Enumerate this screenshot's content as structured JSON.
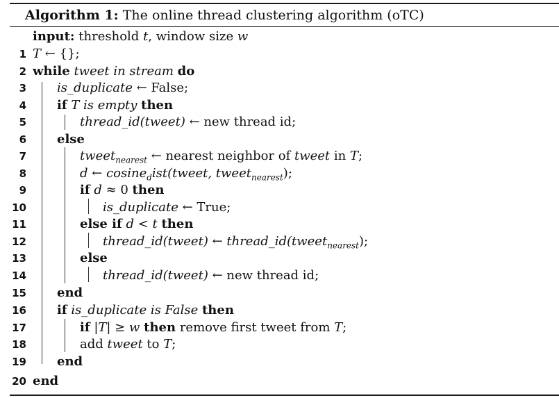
{
  "algorithm": {
    "caption_label": "Algorithm 1:",
    "caption_title": "The online thread clustering algorithm (oTC)",
    "input_keyword": "input:",
    "input_text_1": "threshold ",
    "input_var_t": "t",
    "input_text_2": ", window size ",
    "input_var_w": "w"
  },
  "lines": [
    {
      "num": "1"
    },
    {
      "num": "2"
    },
    {
      "num": "3"
    },
    {
      "num": "4"
    },
    {
      "num": "5"
    },
    {
      "num": "6"
    },
    {
      "num": "7"
    },
    {
      "num": "8"
    },
    {
      "num": "9"
    },
    {
      "num": "10"
    },
    {
      "num": "11"
    },
    {
      "num": "12"
    },
    {
      "num": "13"
    },
    {
      "num": "14"
    },
    {
      "num": "15"
    },
    {
      "num": "16"
    },
    {
      "num": "17"
    },
    {
      "num": "18"
    },
    {
      "num": "19"
    },
    {
      "num": "20"
    }
  ],
  "code": {
    "l1_a": "T",
    "l1_b": " ← {};",
    "kw_while": "while",
    "l2_cond": " tweet in stream ",
    "kw_do": "do",
    "l3_var": "is_duplicate",
    "l3_rest": " ← False;",
    "kw_if": "if",
    "l4_var": " T",
    "l4_cond": " is empty ",
    "kw_then": "then",
    "l5_lhs": "thread_id(tweet)",
    "l5_rest": " ← new thread id;",
    "kw_else": "else",
    "l7_var": "tweet",
    "l7_sub": "nearest",
    "l7_text": " ← nearest neighbor of ",
    "l7_tweet": "tweet",
    "l7_in": " in ",
    "l7_T": "T",
    "l7_end": ";",
    "l8_d": "d",
    "l8_arrow": " ← ",
    "l8_func": "cosine",
    "l8_sub": "d",
    "l8_func2": "ist(tweet, tweet",
    "l8_sub2": "nearest",
    "l8_end": ");",
    "l9_cond_a": " d",
    "l9_cond_b": " ≈ 0 ",
    "l10_var": "is_duplicate",
    "l10_rest": " ← True;",
    "kw_elseif": "else if",
    "l11_d": " d",
    "l11_lt": " < ",
    "l11_t": "t",
    "l11_sp": " ",
    "l12_lhs": "thread_id(tweet)",
    "l12_arrow": " ← ",
    "l12_rhs": "thread_id(tweet",
    "l12_sub": "nearest",
    "l12_end": ");",
    "l14_lhs": "thread_id(tweet)",
    "l14_rest": " ← new thread id;",
    "kw_end": "end",
    "l16_var": " is_duplicate",
    "l16_cond": " is False ",
    "l17_cond_a": " |T|",
    "l17_cond_b": " ≥ ",
    "l17_w": "w",
    "l17_sp": " ",
    "l17_rest": " remove first tweet from ",
    "l17_T": "T",
    "l17_end": ";",
    "l18_a": "add ",
    "l18_tweet": "tweet",
    "l18_b": " to ",
    "l18_T": "T",
    "l18_end": ";"
  }
}
